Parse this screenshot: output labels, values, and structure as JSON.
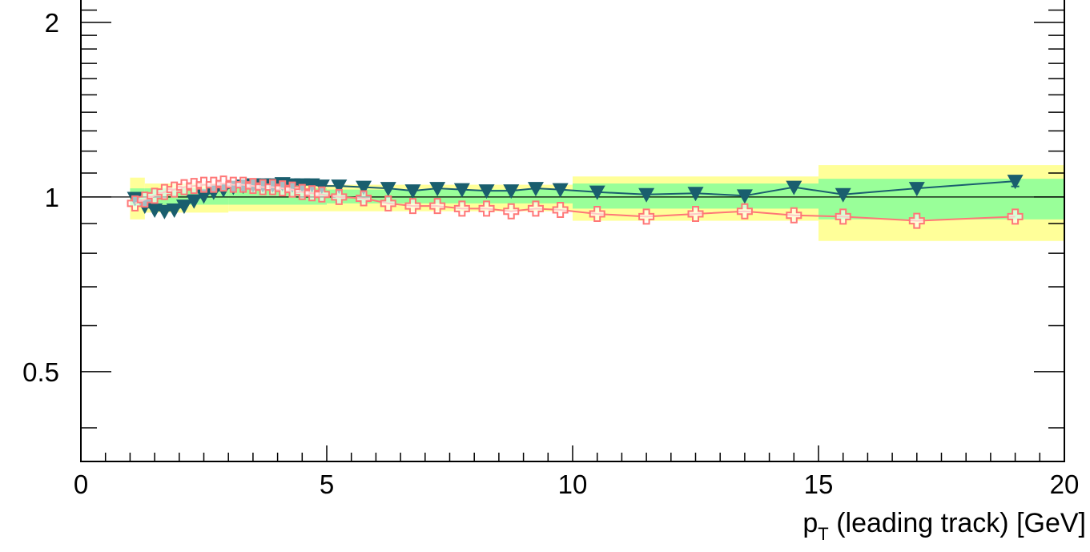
{
  "chart_data": {
    "type": "scatter",
    "title": "",
    "xlabel": {
      "main": "p",
      "sub": "T",
      "rest": " (leading track) [GeV]"
    },
    "ylabel": "",
    "xlim": [
      0,
      20
    ],
    "ylim": [
      0.35,
      2.2
    ],
    "y_scale": "log",
    "x_ticks": [
      {
        "value": 0,
        "label": "0"
      },
      {
        "value": 5,
        "label": "5"
      },
      {
        "value": 10,
        "label": "10"
      },
      {
        "value": 15,
        "label": "15"
      },
      {
        "value": 20,
        "label": "20"
      }
    ],
    "y_ticks": [
      {
        "value": 0.5,
        "label": "0.5"
      },
      {
        "value": 1,
        "label": "1"
      },
      {
        "value": 2,
        "label": "2"
      }
    ],
    "reference_line": 1,
    "grid": false,
    "bands": {
      "outer_color": "#ffff99",
      "inner_color": "#99ff99",
      "segments": [
        {
          "x0": 1.0,
          "x1": 1.3,
          "outer": [
            0.915,
            1.08
          ],
          "inner": [
            0.965,
            1.035
          ]
        },
        {
          "x0": 1.3,
          "x1": 3.0,
          "outer": [
            0.94,
            1.055
          ],
          "inner": [
            0.97,
            1.035
          ]
        },
        {
          "x0": 3.0,
          "x1": 5.0,
          "outer": [
            0.945,
            1.055
          ],
          "inner": [
            0.97,
            1.035
          ]
        },
        {
          "x0": 5.0,
          "x1": 10.0,
          "outer": [
            0.945,
            1.05
          ],
          "inner": [
            0.975,
            1.03
          ]
        },
        {
          "x0": 10.0,
          "x1": 15.0,
          "outer": [
            0.91,
            1.085
          ],
          "inner": [
            0.955,
            1.055
          ]
        },
        {
          "x0": 15.0,
          "x1": 20.0,
          "outer": [
            0.84,
            1.135
          ],
          "inner": [
            0.915,
            1.075
          ]
        }
      ]
    },
    "series": [
      {
        "marker": "triangle-down",
        "color": "#1a5e6e",
        "x": [
          1.1,
          1.3,
          1.5,
          1.7,
          1.9,
          2.1,
          2.3,
          2.5,
          2.7,
          2.9,
          3.1,
          3.3,
          3.5,
          3.7,
          3.9,
          4.1,
          4.3,
          4.5,
          4.7,
          4.9,
          5.25,
          5.75,
          6.25,
          6.75,
          7.25,
          7.75,
          8.25,
          8.75,
          9.25,
          9.75,
          10.5,
          11.5,
          12.5,
          13.5,
          14.5,
          15.5,
          17.0,
          19.0
        ],
        "y": [
          0.995,
          0.965,
          0.95,
          0.945,
          0.95,
          0.965,
          0.985,
          1.005,
          1.02,
          1.03,
          1.04,
          1.045,
          1.05,
          1.05,
          1.05,
          1.055,
          1.05,
          1.05,
          1.05,
          1.045,
          1.045,
          1.04,
          1.035,
          1.025,
          1.035,
          1.03,
          1.025,
          1.025,
          1.035,
          1.03,
          1.02,
          1.01,
          1.015,
          1.005,
          1.04,
          1.01,
          1.035,
          1.065
        ],
        "err": [
          0,
          0,
          0,
          0,
          0,
          0,
          0,
          0,
          0,
          0,
          0,
          0,
          0,
          0,
          0,
          0,
          0,
          0,
          0,
          0,
          0,
          0,
          0,
          0,
          0,
          0,
          0,
          0,
          0,
          0,
          0,
          0,
          0,
          0,
          0,
          0,
          0,
          0.022
        ]
      },
      {
        "marker": "open-cross",
        "color": "#ff7777",
        "x": [
          1.1,
          1.3,
          1.5,
          1.7,
          1.9,
          2.1,
          2.3,
          2.5,
          2.7,
          2.9,
          3.1,
          3.3,
          3.5,
          3.7,
          3.9,
          4.1,
          4.3,
          4.5,
          4.7,
          4.9,
          5.25,
          5.75,
          6.25,
          6.75,
          7.25,
          7.75,
          8.25,
          8.75,
          9.25,
          9.75,
          10.5,
          11.5,
          12.5,
          13.5,
          14.5,
          15.5,
          17.0,
          19.0
        ],
        "y": [
          0.975,
          0.99,
          1.005,
          1.02,
          1.03,
          1.04,
          1.045,
          1.05,
          1.05,
          1.055,
          1.05,
          1.05,
          1.045,
          1.04,
          1.04,
          1.035,
          1.03,
          1.02,
          1.015,
          1.01,
          1.0,
          0.995,
          0.975,
          0.965,
          0.965,
          0.955,
          0.955,
          0.945,
          0.955,
          0.95,
          0.935,
          0.925,
          0.935,
          0.945,
          0.93,
          0.925,
          0.91,
          0.925
        ],
        "err": []
      }
    ]
  }
}
